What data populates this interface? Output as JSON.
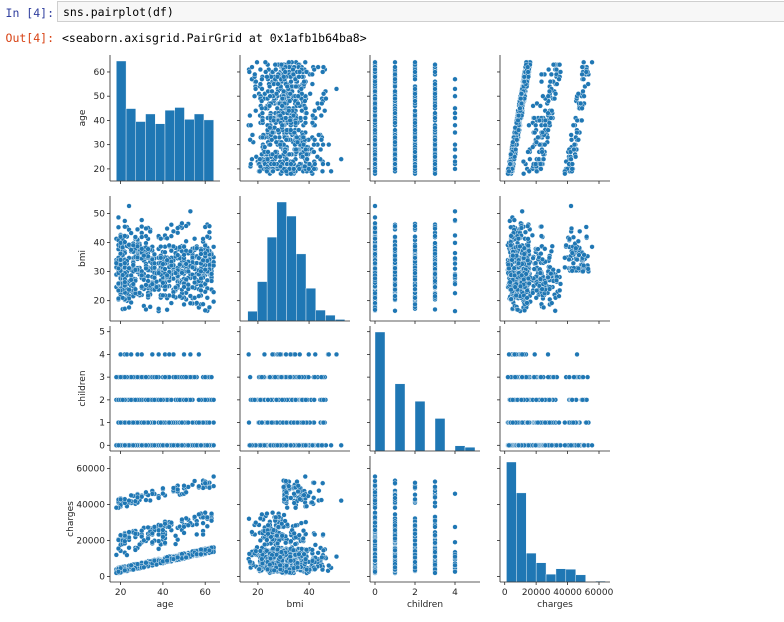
{
  "cell": {
    "in_prompt": "In [4]:",
    "out_prompt": "Out[4]:",
    "code": "sns.pairplot(df)",
    "output": "<seaborn.axisgrid.PairGrid at 0x1afb1b64ba8>"
  },
  "colors": {
    "marker": "#1f77b4",
    "marker_edge": "#ffffff",
    "axis": "#262626",
    "in_prompt": "#303f9f",
    "out_prompt": "#d84315",
    "input_bg": "#f7f7f7",
    "input_border": "#cfcfcf"
  },
  "chart_data": {
    "type": "pairplot",
    "variables": [
      "age",
      "bmi",
      "children",
      "charges"
    ],
    "ranges": {
      "age": [
        15,
        67
      ],
      "bmi": [
        13,
        56
      ],
      "children": [
        -0.25,
        5.25
      ],
      "charges": [
        -3000,
        67000
      ]
    },
    "ticks": {
      "age": [
        20,
        30,
        40,
        50,
        60
      ],
      "age_x": [
        20,
        40,
        60
      ],
      "bmi": [
        20,
        30,
        40,
        50
      ],
      "bmi_x": [
        20,
        40
      ],
      "children": [
        0,
        1,
        2,
        3,
        4,
        5
      ],
      "children_x": [
        0,
        2,
        4
      ],
      "charges": [
        0,
        20000,
        40000,
        60000
      ],
      "charges_x": [
        0,
        20000,
        40000,
        60000
      ]
    },
    "histograms": {
      "age": {
        "edges": [
          18,
          22.6,
          27.2,
          31.8,
          36.4,
          41,
          45.6,
          50.2,
          54.8,
          59.4,
          64
        ],
        "counts": [
          222,
          134,
          110,
          124,
          106,
          131,
          136,
          114,
          124,
          113
        ]
      },
      "bmi": {
        "edges": [
          16,
          19.8,
          23.6,
          27.4,
          31.2,
          35,
          38.8,
          42.6,
          46.4,
          50.2,
          54
        ],
        "counts": [
          25,
          101,
          215,
          305,
          269,
          172,
          84,
          28,
          15,
          4
        ]
      },
      "children": {
        "edges": [
          0,
          0.5,
          1,
          1.5,
          2,
          2.5,
          3,
          3.5,
          4,
          4.5,
          5
        ],
        "counts": [
          574,
          0,
          324,
          0,
          240,
          0,
          157,
          0,
          25,
          18
        ]
      },
      "charges": {
        "edges": [
          1100,
          7400,
          13700,
          20000,
          26300,
          32600,
          38900,
          45200,
          51500,
          57800,
          64100
        ],
        "counts": [
          536,
          398,
          129,
          86,
          35,
          59,
          57,
          32,
          2,
          4
        ]
      }
    },
    "n_points": 1338,
    "xlabels": [
      "age",
      "bmi",
      "children",
      "charges"
    ],
    "ylabels": [
      "age",
      "bmi",
      "children",
      "charges"
    ]
  }
}
